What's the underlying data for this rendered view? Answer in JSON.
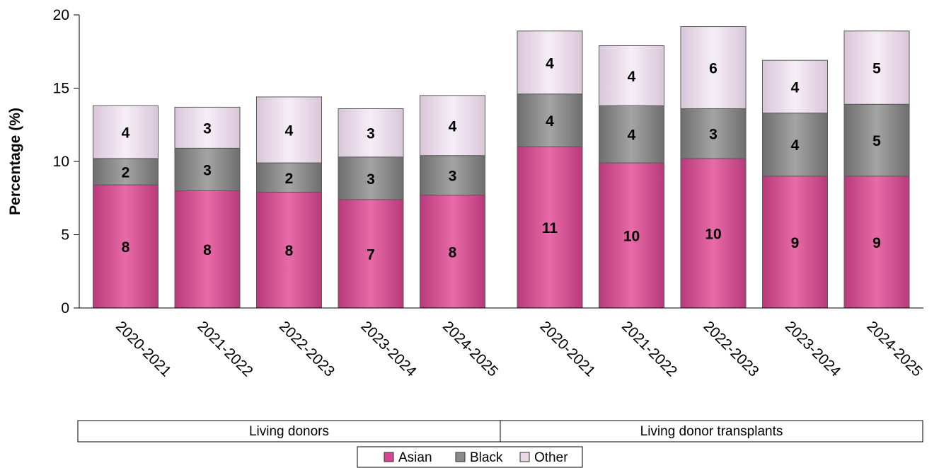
{
  "chart_data": {
    "type": "bar",
    "stacked": true,
    "ylabel": "Percentage (%)",
    "ylim": [
      0,
      20
    ],
    "yticks": [
      0,
      5,
      10,
      15,
      20
    ],
    "grid": false,
    "legend_position": "bottom",
    "groups": [
      {
        "name": "Living donors",
        "categories": [
          "2020-2021",
          "2021-2022",
          "2022-2023",
          "2023-2024",
          "2024-2025"
        ]
      },
      {
        "name": "Living donor transplants",
        "categories": [
          "2020-2021",
          "2021-2022",
          "2022-2023",
          "2023-2024",
          "2024-2025"
        ]
      }
    ],
    "series": [
      {
        "name": "Asian",
        "color": "#d6458f",
        "values": [
          8.4,
          8.0,
          7.9,
          7.4,
          7.7,
          11.0,
          9.9,
          10.2,
          9.0,
          9.0
        ],
        "labels": [
          "8",
          "8",
          "8",
          "7",
          "8",
          "11",
          "10",
          "10",
          "9",
          "9"
        ]
      },
      {
        "name": "Black",
        "color": "#8a8a8a",
        "values": [
          1.8,
          2.9,
          2.0,
          2.9,
          2.7,
          3.6,
          3.9,
          3.4,
          4.3,
          4.9
        ],
        "labels": [
          "2",
          "3",
          "2",
          "3",
          "3",
          "4",
          "4",
          "3",
          "4",
          "5"
        ]
      },
      {
        "name": "Other",
        "color": "#e8d8e8",
        "values": [
          3.6,
          2.8,
          4.5,
          3.3,
          4.1,
          4.3,
          4.1,
          5.6,
          3.6,
          5.0
        ],
        "labels": [
          "4",
          "3",
          "4",
          "3",
          "4",
          "4",
          "4",
          "6",
          "4",
          "5"
        ]
      }
    ]
  }
}
